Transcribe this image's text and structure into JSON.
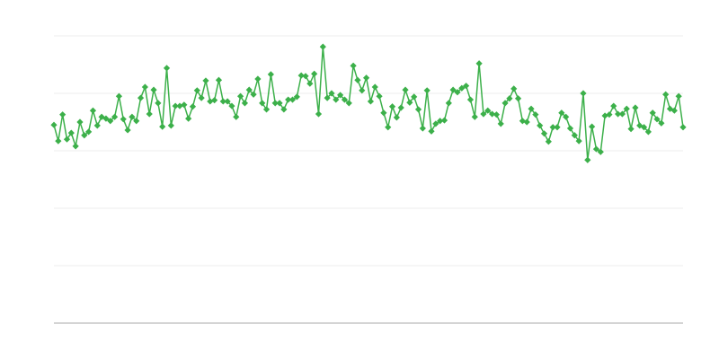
{
  "chart_data": {
    "type": "line",
    "color": "#3cb04a",
    "ylim": [
      0,
      5
    ],
    "yticks": [
      0,
      1,
      2,
      3,
      4,
      5
    ],
    "grid": true,
    "values": [
      3.45,
      3.17,
      3.63,
      3.2,
      3.31,
      3.08,
      3.5,
      3.27,
      3.33,
      3.7,
      3.44,
      3.59,
      3.56,
      3.52,
      3.59,
      3.95,
      3.55,
      3.36,
      3.59,
      3.52,
      3.92,
      4.11,
      3.64,
      4.06,
      3.83,
      3.42,
      4.44,
      3.44,
      3.78,
      3.78,
      3.8,
      3.56,
      3.77,
      4.05,
      3.92,
      4.22,
      3.86,
      3.88,
      4.23,
      3.86,
      3.86,
      3.78,
      3.59,
      3.95,
      3.83,
      4.06,
      3.98,
      4.25,
      3.83,
      3.72,
      4.33,
      3.83,
      3.83,
      3.72,
      3.89,
      3.89,
      3.94,
      4.31,
      4.3,
      4.17,
      4.34,
      3.64,
      4.81,
      3.92,
      4.0,
      3.89,
      3.97,
      3.89,
      3.83,
      4.48,
      4.23,
      4.05,
      4.27,
      3.86,
      4.11,
      3.95,
      3.66,
      3.41,
      3.77,
      3.58,
      3.75,
      4.06,
      3.84,
      3.94,
      3.72,
      3.39,
      4.05,
      3.34,
      3.47,
      3.52,
      3.53,
      3.83,
      4.06,
      4.02,
      4.09,
      4.13,
      3.89,
      3.59,
      4.52,
      3.64,
      3.7,
      3.64,
      3.63,
      3.47,
      3.83,
      3.91,
      4.08,
      3.91,
      3.52,
      3.5,
      3.73,
      3.63,
      3.44,
      3.3,
      3.16,
      3.41,
      3.41,
      3.66,
      3.59,
      3.39,
      3.27,
      3.17,
      4.0,
      2.84,
      3.42,
      3.03,
      2.98,
      3.61,
      3.63,
      3.78,
      3.64,
      3.64,
      3.73,
      3.38,
      3.75,
      3.44,
      3.41,
      3.33,
      3.66,
      3.55,
      3.48,
      3.98,
      3.73,
      3.7,
      3.95,
      3.41
    ]
  }
}
